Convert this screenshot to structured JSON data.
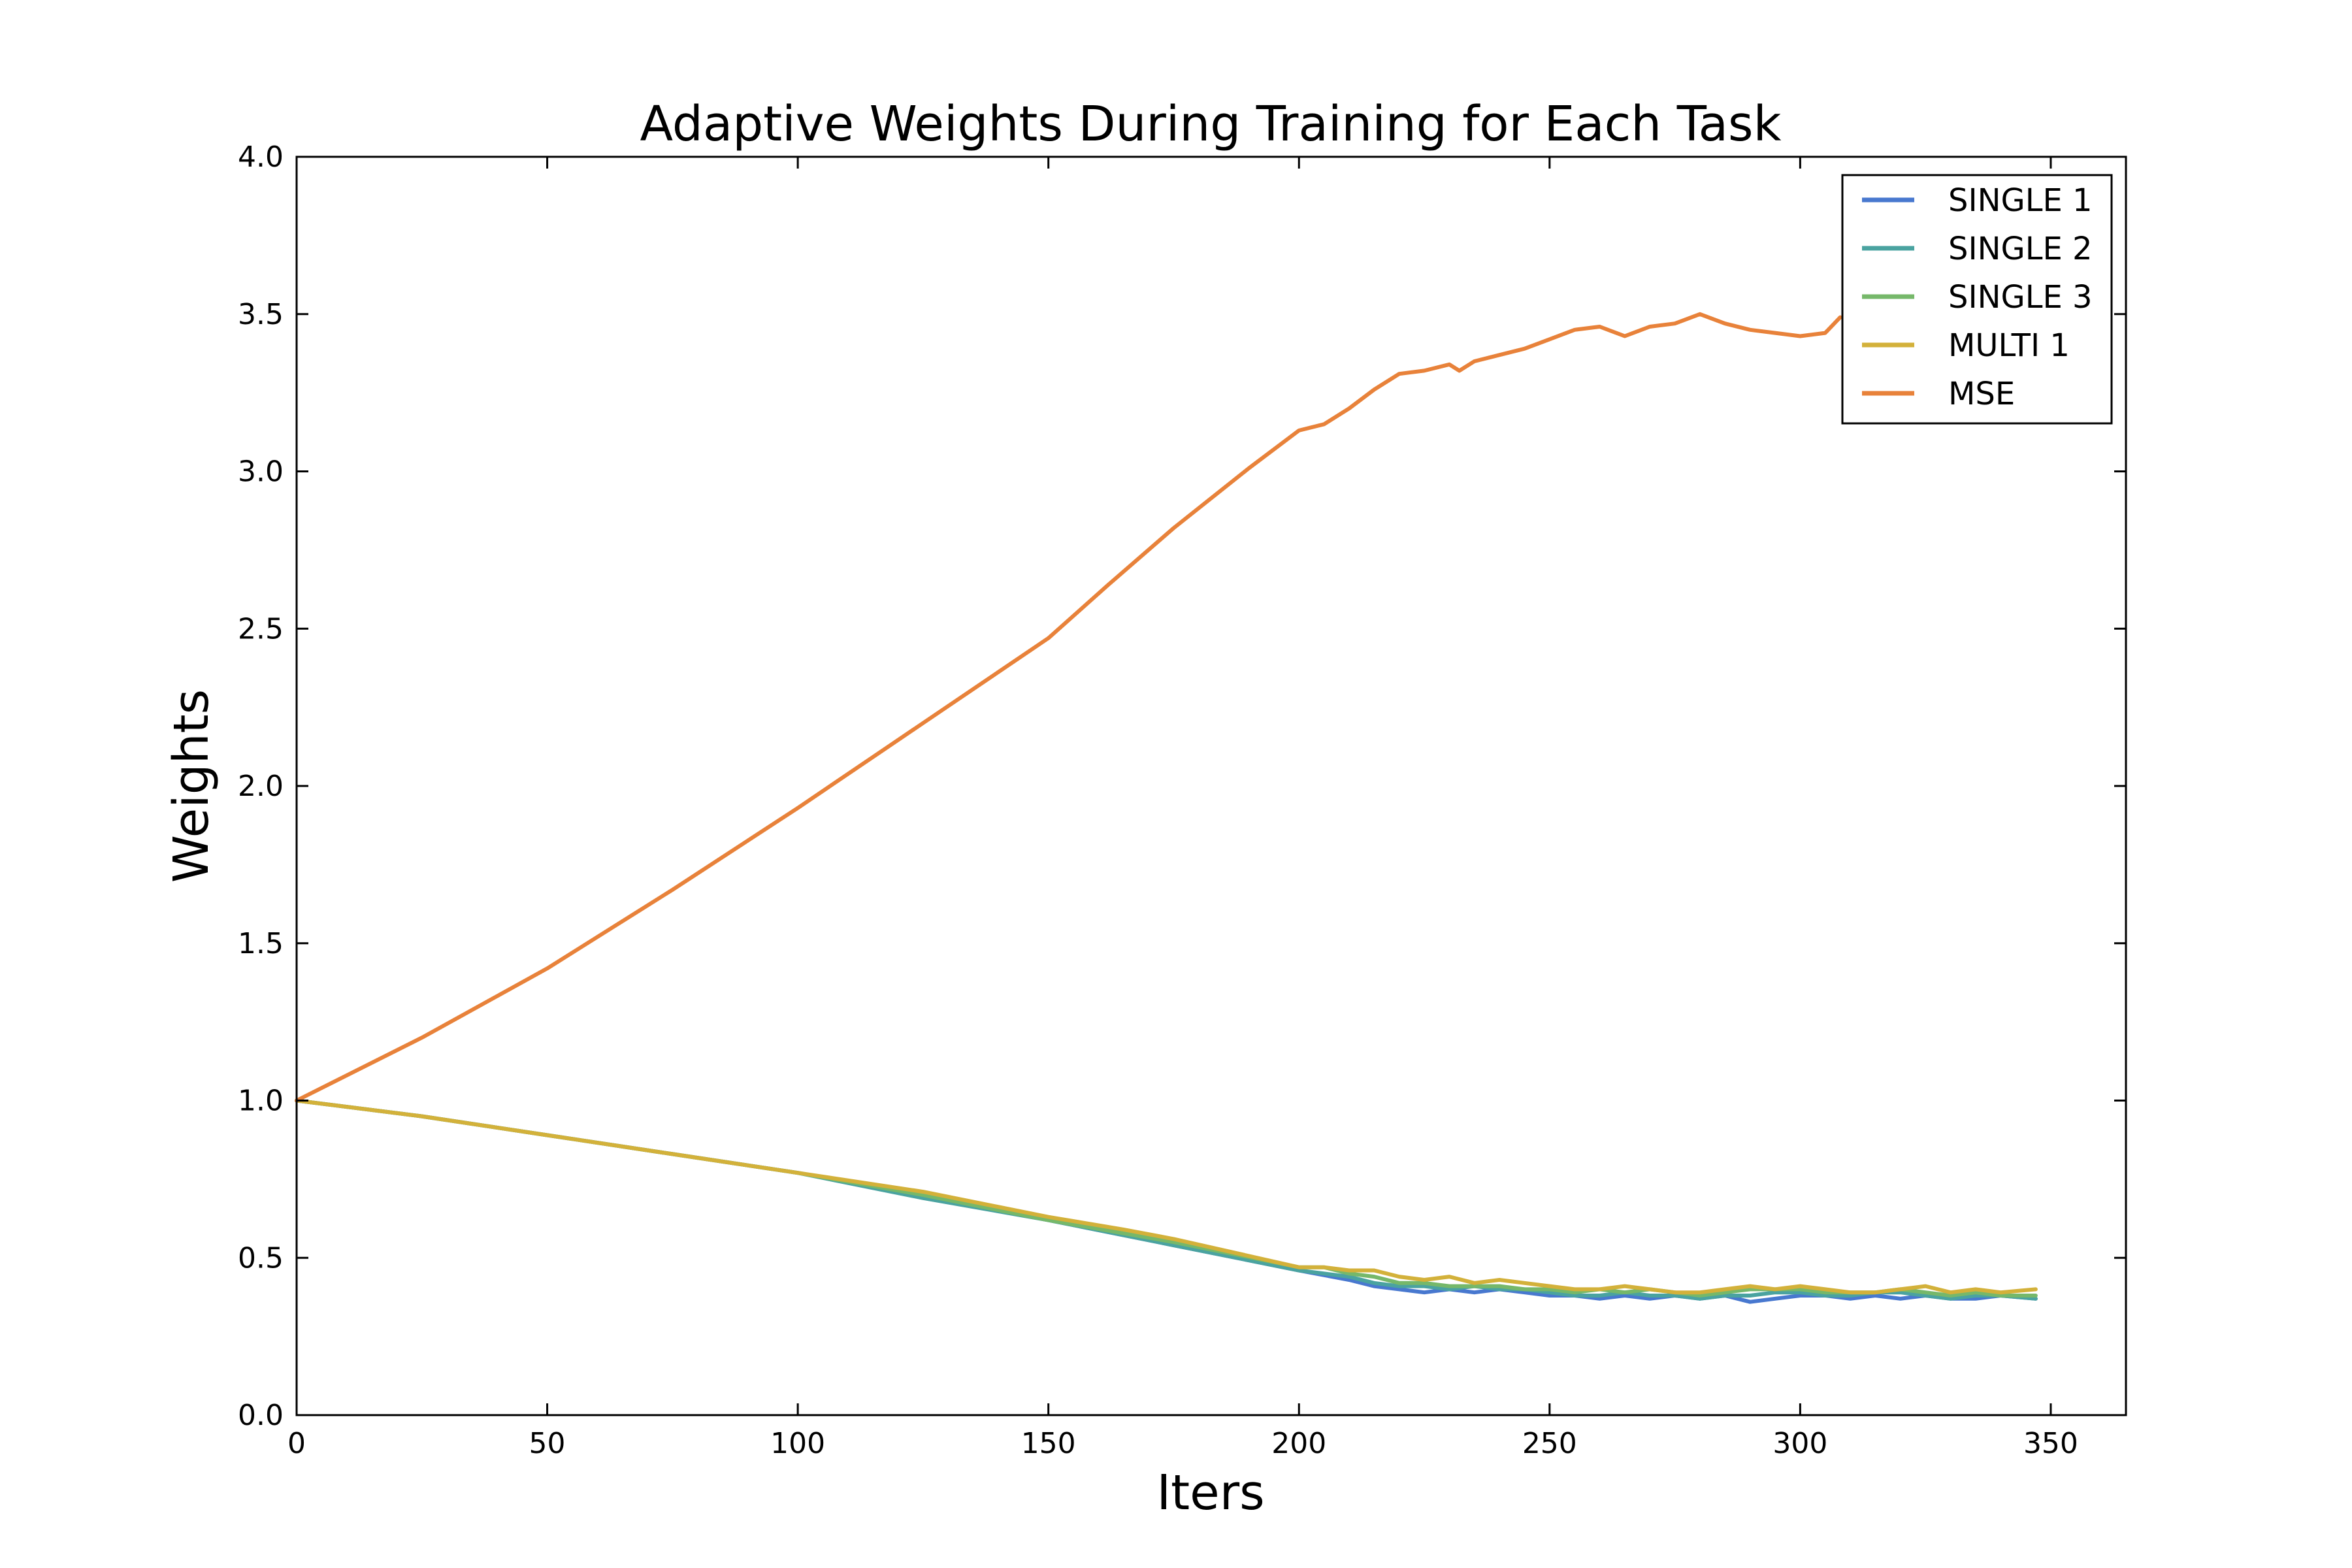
{
  "chart_data": {
    "type": "line",
    "title": "Adaptive Weights During Training for Each Task",
    "xlabel": "Iters",
    "ylabel": "Weights",
    "xlim": [
      0,
      365
    ],
    "ylim": [
      0.0,
      4.0
    ],
    "xticks": [
      0,
      50,
      100,
      150,
      200,
      250,
      300,
      350
    ],
    "yticks": [
      0.0,
      0.5,
      1.0,
      1.5,
      2.0,
      2.5,
      3.0,
      3.5,
      4.0
    ],
    "xtick_labels": [
      "0",
      "50",
      "100",
      "150",
      "200",
      "250",
      "300",
      "350"
    ],
    "ytick_labels": [
      "0.0",
      "0.5",
      "1.0",
      "1.5",
      "2.0",
      "2.5",
      "3.0",
      "3.5",
      "4.0"
    ],
    "grid": false,
    "legend_position": "top-right",
    "series": [
      {
        "name": "SINGLE 1",
        "color": "#4878cf",
        "x": [
          0,
          25,
          50,
          75,
          100,
          125,
          150,
          175,
          200,
          210,
          215,
          220,
          225,
          230,
          235,
          240,
          245,
          250,
          255,
          260,
          265,
          270,
          275,
          280,
          285,
          290,
          295,
          300,
          305,
          310,
          315,
          320,
          325,
          330,
          335,
          340,
          347
        ],
        "y": [
          1.0,
          0.95,
          0.89,
          0.83,
          0.77,
          0.7,
          0.62,
          0.54,
          0.46,
          0.43,
          0.41,
          0.4,
          0.39,
          0.4,
          0.39,
          0.4,
          0.39,
          0.38,
          0.38,
          0.37,
          0.38,
          0.37,
          0.38,
          0.37,
          0.38,
          0.36,
          0.37,
          0.38,
          0.38,
          0.37,
          0.38,
          0.37,
          0.38,
          0.37,
          0.37,
          0.38,
          0.37
        ]
      },
      {
        "name": "SINGLE 2",
        "color": "#4aa3a0",
        "x": [
          0,
          25,
          50,
          75,
          100,
          125,
          150,
          175,
          200,
          210,
          215,
          220,
          225,
          230,
          235,
          240,
          245,
          250,
          255,
          260,
          265,
          270,
          275,
          280,
          285,
          290,
          295,
          300,
          305,
          310,
          315,
          320,
          325,
          330,
          335,
          340,
          347
        ],
        "y": [
          1.0,
          0.95,
          0.89,
          0.83,
          0.77,
          0.69,
          0.62,
          0.54,
          0.46,
          0.44,
          0.42,
          0.41,
          0.41,
          0.4,
          0.41,
          0.4,
          0.4,
          0.39,
          0.38,
          0.38,
          0.39,
          0.38,
          0.38,
          0.37,
          0.38,
          0.38,
          0.39,
          0.39,
          0.38,
          0.38,
          0.39,
          0.39,
          0.38,
          0.37,
          0.38,
          0.38,
          0.37
        ]
      },
      {
        "name": "SINGLE 3",
        "color": "#76b86a",
        "x": [
          0,
          25,
          50,
          75,
          100,
          125,
          150,
          175,
          200,
          205,
          210,
          215,
          220,
          225,
          230,
          235,
          240,
          245,
          250,
          255,
          260,
          265,
          270,
          275,
          280,
          285,
          290,
          295,
          300,
          305,
          310,
          315,
          320,
          325,
          330,
          335,
          340,
          347
        ],
        "y": [
          1.0,
          0.95,
          0.89,
          0.83,
          0.77,
          0.7,
          0.62,
          0.55,
          0.47,
          0.47,
          0.45,
          0.44,
          0.42,
          0.42,
          0.41,
          0.41,
          0.41,
          0.4,
          0.4,
          0.39,
          0.4,
          0.39,
          0.4,
          0.39,
          0.38,
          0.39,
          0.4,
          0.4,
          0.4,
          0.39,
          0.39,
          0.39,
          0.4,
          0.39,
          0.38,
          0.39,
          0.38,
          0.38
        ]
      },
      {
        "name": "MULTI 1",
        "color": "#d3b13a",
        "x": [
          0,
          25,
          50,
          75,
          100,
          125,
          150,
          165,
          175,
          200,
          205,
          210,
          215,
          220,
          225,
          230,
          235,
          240,
          245,
          250,
          255,
          260,
          265,
          270,
          275,
          280,
          285,
          290,
          295,
          300,
          305,
          310,
          315,
          320,
          325,
          330,
          335,
          340,
          347
        ],
        "y": [
          1.0,
          0.95,
          0.89,
          0.83,
          0.77,
          0.71,
          0.63,
          0.59,
          0.56,
          0.47,
          0.47,
          0.46,
          0.46,
          0.44,
          0.43,
          0.44,
          0.42,
          0.43,
          0.42,
          0.41,
          0.4,
          0.4,
          0.41,
          0.4,
          0.39,
          0.39,
          0.4,
          0.41,
          0.4,
          0.41,
          0.4,
          0.39,
          0.39,
          0.4,
          0.41,
          0.39,
          0.4,
          0.39,
          0.4
        ]
      },
      {
        "name": "MSE",
        "color": "#e8823a",
        "x": [
          0,
          25,
          50,
          75,
          100,
          125,
          150,
          162,
          175,
          190,
          200,
          205,
          210,
          215,
          220,
          225,
          230,
          232,
          235,
          240,
          245,
          250,
          255,
          260,
          265,
          270,
          275,
          280,
          285,
          290,
          295,
          300,
          305,
          308
        ],
        "y": [
          1.0,
          1.2,
          1.42,
          1.67,
          1.93,
          2.2,
          2.47,
          2.64,
          2.82,
          3.01,
          3.13,
          3.15,
          3.2,
          3.26,
          3.31,
          3.32,
          3.34,
          3.32,
          3.35,
          3.37,
          3.39,
          3.42,
          3.45,
          3.46,
          3.43,
          3.46,
          3.47,
          3.5,
          3.47,
          3.45,
          3.44,
          3.43,
          3.44,
          3.49
        ]
      }
    ]
  }
}
